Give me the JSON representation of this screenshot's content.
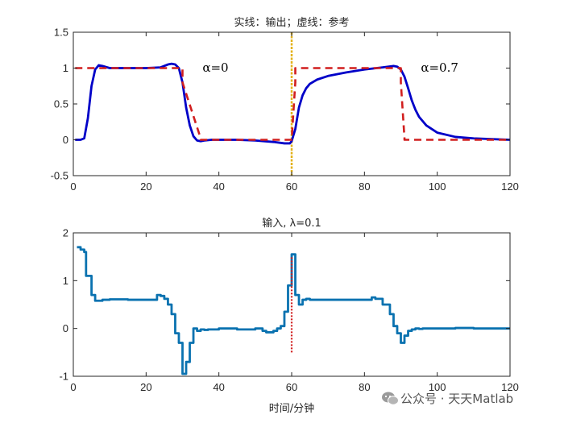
{
  "chart_data": [
    {
      "type": "line",
      "title": "实线：输出；虚线：参考",
      "xlim": [
        0,
        120
      ],
      "ylim": [
        -0.5,
        1.5
      ],
      "xticks": [
        0,
        20,
        40,
        60,
        80,
        100,
        120
      ],
      "yticks": [
        -0.5,
        0,
        0.5,
        1,
        1.5
      ],
      "xtick_labels": [
        "0",
        "20",
        "40",
        "60",
        "80",
        "100",
        "120"
      ],
      "ytick_labels": [
        "-0.5",
        "0",
        "0.5",
        "1",
        "1.5"
      ],
      "grid": false,
      "series": [
        {
          "style": "solid",
          "color": "#0000c8",
          "x": [
            0.5,
            2,
            3,
            4,
            5,
            6,
            7,
            8,
            10,
            15,
            20,
            24,
            26,
            27,
            28,
            29,
            30,
            31,
            32,
            33,
            34,
            35,
            36,
            38,
            40,
            45,
            50,
            55,
            58,
            59.5,
            60,
            61,
            62,
            63,
            64,
            65,
            67,
            70,
            75,
            80,
            85,
            88,
            89,
            90,
            91,
            92,
            93,
            94,
            95,
            97,
            100,
            105,
            110,
            115,
            120
          ],
          "y": [
            0,
            0,
            0.02,
            0.3,
            0.75,
            0.98,
            1.04,
            1.03,
            1.0,
            1.0,
            1.0,
            1.01,
            1.05,
            1.06,
            1.05,
            1.0,
            0.8,
            0.45,
            0.2,
            0.05,
            -0.01,
            -0.02,
            -0.01,
            0,
            0,
            0,
            -0.01,
            -0.03,
            -0.05,
            -0.05,
            -0.02,
            0.15,
            0.45,
            0.62,
            0.72,
            0.78,
            0.84,
            0.89,
            0.94,
            0.98,
            1.01,
            1.03,
            1.02,
            0.98,
            0.88,
            0.72,
            0.55,
            0.42,
            0.32,
            0.2,
            0.1,
            0.04,
            0.02,
            0.01,
            0.0
          ]
        },
        {
          "style": "dashed",
          "color": "#d11f1f",
          "x": [
            0.5,
            30,
            30,
            35,
            35,
            60,
            60,
            61,
            61,
            90,
            90,
            91,
            91,
            120
          ],
          "y": [
            1,
            1,
            0.8,
            0.02,
            0.0,
            0.0,
            0.0,
            0.8,
            1.0,
            1.0,
            0.8,
            0.02,
            0.0,
            0.0
          ]
        }
      ],
      "vline": {
        "x": 60,
        "color": "#e3b21b"
      },
      "annotations": [
        {
          "text": "α=0",
          "x": 35.5,
          "y": 0.95
        },
        {
          "text": "α=0.7",
          "x": 95.5,
          "y": 0.95
        }
      ]
    },
    {
      "type": "line",
      "title": "输入, λ=0.1",
      "xlabel": "时间/分钟",
      "xlim": [
        0,
        120
      ],
      "ylim": [
        -1,
        2
      ],
      "xticks": [
        0,
        20,
        40,
        60,
        80,
        100,
        120
      ],
      "yticks": [
        -1,
        0,
        1,
        2
      ],
      "xtick_labels": [
        "0",
        "20",
        "40",
        "60",
        "80",
        "100",
        "120"
      ],
      "ytick_labels": [
        "-1",
        "0",
        "1",
        "2"
      ],
      "grid": false,
      "series": [
        {
          "style": "stairs",
          "color": "#0a72b0",
          "x": [
            1,
            2,
            3,
            3.5,
            5,
            6,
            8,
            10,
            15,
            20,
            22,
            23,
            24,
            25,
            26,
            27,
            28,
            29,
            30,
            31,
            32,
            33,
            34,
            35,
            36,
            37,
            40,
            45,
            50,
            52,
            53,
            55,
            56,
            57,
            58,
            59,
            60,
            61,
            62,
            63,
            64,
            65,
            70,
            75,
            80,
            82,
            83,
            85,
            87,
            88,
            89,
            90,
            91,
            92,
            93,
            94,
            95,
            96,
            100,
            105,
            110,
            115,
            120
          ],
          "y": [
            1.7,
            1.65,
            1.6,
            1.1,
            0.7,
            0.58,
            0.6,
            0.61,
            0.6,
            0.6,
            0.6,
            0.7,
            0.68,
            0.62,
            0.5,
            0.3,
            -0.1,
            -0.3,
            -0.95,
            -0.7,
            -0.3,
            0.0,
            -0.05,
            -0.02,
            -0.03,
            -0.02,
            0.0,
            -0.02,
            0.0,
            -0.05,
            -0.08,
            -0.05,
            0.0,
            0.05,
            0.35,
            0.9,
            1.55,
            0.7,
            0.5,
            0.6,
            0.62,
            0.6,
            0.6,
            0.6,
            0.6,
            0.65,
            0.62,
            0.5,
            0.3,
            0.05,
            -0.1,
            -0.3,
            -0.15,
            -0.05,
            -0.02,
            0.0,
            -0.01,
            0.0,
            0.0,
            0.01,
            0.0,
            0.0,
            0.0
          ]
        }
      ],
      "vline": {
        "x": 60,
        "y0": -0.5,
        "y1": 1.5,
        "color": "#d11f1f",
        "style": "dotted"
      }
    }
  ],
  "watermark": {
    "text": "公众号 · 天天Matlab",
    "icon": "wechat-icon"
  },
  "colors": {
    "axis": "#262626",
    "output_line": "#0000c8",
    "reference_line": "#d11f1f",
    "input_line": "#0a72b0",
    "divider_line": "#e3b21b"
  }
}
